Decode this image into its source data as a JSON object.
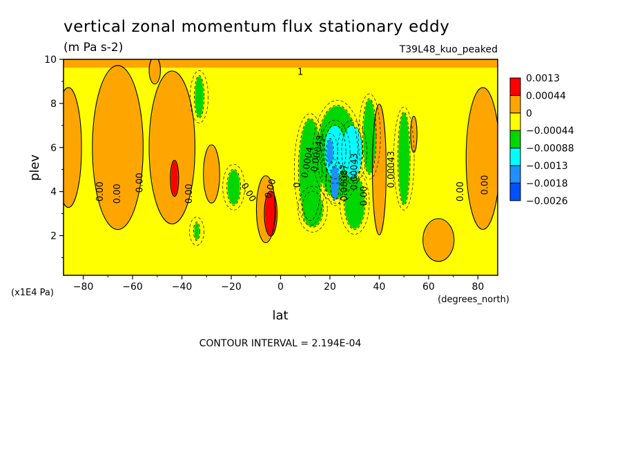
{
  "chart_data": {
    "type": "heatmap",
    "title": "vertical zonal momentum flux stationary eddy",
    "subtitle": "(m Pa s-2)",
    "dataset_label": "T39L48_kuo_peaked",
    "xlabel": "lat",
    "x_units": "(degrees_north)",
    "ylabel": "plev",
    "y_units": "(x1E4 Pa)",
    "xlim": [
      -88,
      88
    ],
    "ylim": [
      10,
      0.2
    ],
    "x_ticks": [
      -80,
      -60,
      -40,
      -20,
      0,
      20,
      40,
      60,
      80
    ],
    "y_ticks": [
      2,
      4,
      6,
      8,
      10
    ],
    "footer": "CONTOUR INTERVAL = 2.194E-04",
    "legend": {
      "placement": "right",
      "labels": [
        "0.0013",
        "0.00044",
        "0",
        "−0.00044",
        "−0.00088",
        "−0.0013",
        "−0.0018",
        "−0.0026"
      ],
      "colors": [
        "#ff0000",
        "#ffa500",
        "#ffff00",
        "#00d700",
        "#00ffff",
        "#1e90ff",
        "#0050ff"
      ]
    },
    "contour_labels": [
      {
        "text": "0.00",
        "lat": -72,
        "plev": 4.0,
        "rotate": -90
      },
      {
        "text": "0.00",
        "lat": -65,
        "plev": 3.9,
        "rotate": -90
      },
      {
        "text": "0.00",
        "lat": -56,
        "plev": 4.4,
        "rotate": -90
      },
      {
        "text": "0.00",
        "lat": -36,
        "plev": 3.9,
        "rotate": -90
      },
      {
        "text": "0.00",
        "lat": -14,
        "plev": 3.9,
        "rotate": 60
      },
      {
        "text": "0.00",
        "lat": -3,
        "plev": 4.1,
        "rotate": -75
      },
      {
        "text": "0",
        "lat": 8,
        "plev": 4.3,
        "rotate": -90
      },
      {
        "text": "0.0004",
        "lat": 12,
        "plev": 5.3,
        "rotate": -80
      },
      {
        "text": "0.00043",
        "lat": 16,
        "plev": 5.7,
        "rotate": -80
      },
      {
        "text": "0.00087",
        "lat": 27,
        "plev": 4.4,
        "rotate": -90
      },
      {
        "text": "0.00043",
        "lat": 31,
        "plev": 4.9,
        "rotate": -90
      },
      {
        "text": "0.00",
        "lat": 35,
        "plev": 3.8,
        "rotate": -90
      },
      {
        "text": "0.00043",
        "lat": 46,
        "plev": 5.0,
        "rotate": -90
      },
      {
        "text": "0.00",
        "lat": 74,
        "plev": 4.0,
        "rotate": -90
      },
      {
        "text": "0.00",
        "lat": 84,
        "plev": 4.3,
        "rotate": -90
      },
      {
        "text": "1",
        "lat": 8,
        "plev": 9.3,
        "rotate": 0
      }
    ],
    "field_blobs": [
      {
        "lat": -86,
        "plev": 6.0,
        "wlat": 5,
        "wplev": 5.0,
        "level": 1,
        "note": "west edge orange band"
      },
      {
        "lat": -66,
        "plev": 6.0,
        "wlat": 10,
        "wplev": 7.0,
        "level": 1
      },
      {
        "lat": -44,
        "plev": 6.0,
        "wlat": 9,
        "wplev": 6.5,
        "level": 1
      },
      {
        "lat": -43,
        "plev": 4.6,
        "wlat": 1.4,
        "wplev": 1.2,
        "level": 0
      },
      {
        "lat": -51,
        "plev": 9.5,
        "wlat": 2,
        "wplev": 0.8,
        "level": 1
      },
      {
        "lat": -33,
        "plev": 8.3,
        "wlat": 1.7,
        "wplev": 1.5,
        "level": 3
      },
      {
        "lat": -28,
        "plev": 4.8,
        "wlat": 3,
        "wplev": 2.2,
        "level": 1
      },
      {
        "lat": -19,
        "plev": 4.2,
        "wlat": 2.5,
        "wplev": 1.2,
        "level": 3
      },
      {
        "lat": -34,
        "plev": 2.2,
        "wlat": 1.0,
        "wplev": 0.4,
        "level": 3
      },
      {
        "lat": -6,
        "plev": 3.2,
        "wlat": 3.5,
        "wplev": 2.6,
        "level": 1
      },
      {
        "lat": -4,
        "plev": 3.0,
        "wlat": 2.3,
        "wplev": 1.6,
        "level": 0
      },
      {
        "lat": 12,
        "plev": 5.0,
        "wlat": 4.5,
        "wplev": 4.2,
        "level": 3
      },
      {
        "lat": 13,
        "plev": 3.2,
        "wlat": 4.0,
        "wplev": 1.2,
        "level": 3
      },
      {
        "lat": 23,
        "plev": 5.8,
        "wlat": 8.0,
        "wplev": 3.8,
        "level": 3
      },
      {
        "lat": 30,
        "plev": 3.5,
        "wlat": 4.0,
        "wplev": 2.0,
        "level": 3
      },
      {
        "lat": 22,
        "plev": 5.8,
        "wlat": 4.2,
        "wplev": 2.0,
        "level": 4
      },
      {
        "lat": 29,
        "plev": 5.8,
        "wlat": 4.0,
        "wplev": 2.0,
        "level": 4
      },
      {
        "lat": 22,
        "plev": 4.4,
        "wlat": 1.6,
        "wplev": 1.2,
        "level": 5
      },
      {
        "lat": 20,
        "plev": 5.8,
        "wlat": 1.2,
        "wplev": 0.8,
        "level": 5
      },
      {
        "lat": 36,
        "plev": 6.5,
        "wlat": 2.5,
        "wplev": 3.0,
        "level": 3
      },
      {
        "lat": 40,
        "plev": 5.0,
        "wlat": 2.5,
        "wplev": 5.5,
        "level": 1
      },
      {
        "lat": 50,
        "plev": 5.5,
        "wlat": 2.2,
        "wplev": 3.8,
        "level": 3
      },
      {
        "lat": 54,
        "plev": 6.6,
        "wlat": 1.0,
        "wplev": 1.2,
        "level": 1
      },
      {
        "lat": 82,
        "plev": 5.5,
        "wlat": 6.5,
        "wplev": 6.0,
        "level": 1
      },
      {
        "lat": 64,
        "plev": 1.8,
        "wlat": 6,
        "wplev": 1.5,
        "level": 1
      }
    ]
  }
}
